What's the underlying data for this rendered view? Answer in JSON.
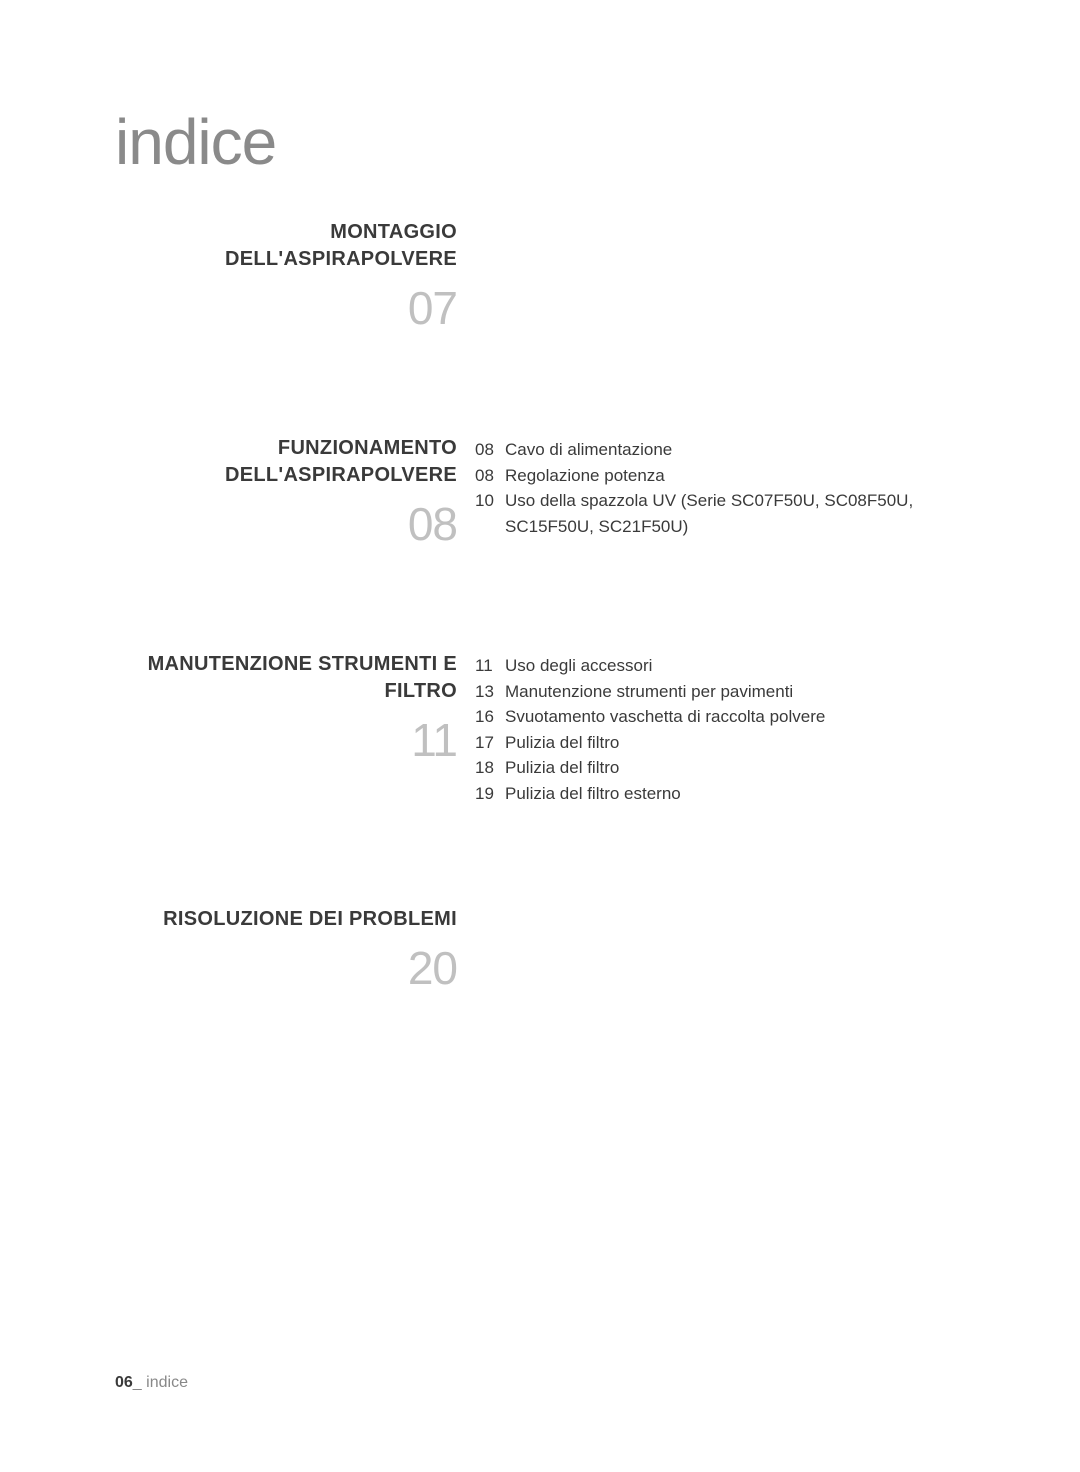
{
  "heading": "indice",
  "sections": [
    {
      "title": "MONTAGGIO DELL'ASPIRAPOLVERE",
      "number": "07",
      "items": []
    },
    {
      "title": "FUNZIONAMENTO DELL'ASPIRAPOLVERE",
      "number": "08",
      "items": [
        {
          "page": "08",
          "label": "Cavo di alimentazione"
        },
        {
          "page": "08",
          "label": "Regolazione potenza"
        },
        {
          "page": "10",
          "label": "Uso della spazzola UV (Serie SC07F50U, SC08F50U, SC15F50U, SC21F50U)"
        }
      ]
    },
    {
      "title": "MANUTENZIONE STRUMENTI E FILTRO",
      "number": "11",
      "items": [
        {
          "page": "11",
          "label": "Uso degli accessori"
        },
        {
          "page": "13",
          "label": "Manutenzione strumenti per pavimenti"
        },
        {
          "page": "16",
          "label": "Svuotamento vaschetta di raccolta polvere"
        },
        {
          "page": "17",
          "label": "Pulizia del filtro"
        },
        {
          "page": "18",
          "label": "Pulizia del filtro"
        },
        {
          "page": "19",
          "label": "Pulizia del filtro esterno"
        }
      ]
    },
    {
      "title": "RISOLUZIONE DEI PROBLEMI",
      "number": "20",
      "items": []
    }
  ],
  "footer": {
    "page": "06",
    "separator": "_",
    "text": "indice"
  }
}
